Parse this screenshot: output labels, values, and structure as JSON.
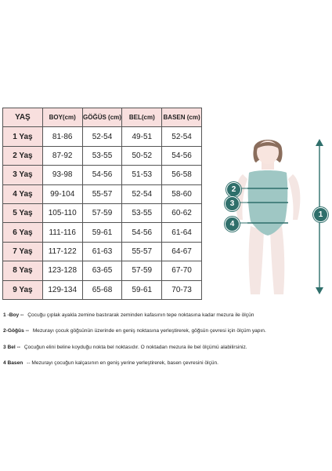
{
  "table": {
    "headers": [
      "YAŞ",
      "BOY(cm)",
      "GÖĞÜS (cm)",
      "BEL(cm)",
      "BASEN (cm)"
    ],
    "rows": [
      [
        "1 Yaş",
        "81-86",
        "52-54",
        "49-51",
        "52-54"
      ],
      [
        "2 Yaş",
        "87-92",
        "53-55",
        "50-52",
        "54-56"
      ],
      [
        "3 Yaş",
        "93-98",
        "54-56",
        "51-53",
        "56-58"
      ],
      [
        "4 Yaş",
        "99-104",
        "55-57",
        "52-54",
        "58-60"
      ],
      [
        "5  Yaş",
        "105-110",
        "57-59",
        "53-55",
        "60-62"
      ],
      [
        "6 Yaş",
        "111-116",
        "59-61",
        "54-56",
        "61-64"
      ],
      [
        "7 Yaş",
        "117-122",
        "61-63",
        "55-57",
        "64-67"
      ],
      [
        "8 Yaş",
        "123-128",
        "63-65",
        "57-59",
        "67-70"
      ],
      [
        "9 Yaş",
        "129-134",
        "65-68",
        "59-61",
        "70-73"
      ]
    ]
  },
  "markers": [
    "1",
    "2",
    "3",
    "4"
  ],
  "colors": {
    "header_bg": "#f8dfde",
    "marker": "#2f6f6b",
    "swimsuit": "#9fc7c4"
  },
  "notes": [
    {
      "label": "1 -Boy --",
      "text": "Çocuğu çıplak ayakla zemine bastırarak  zeminden kafasının tepe noktasına kadar mezura ile ölçün"
    },
    {
      "label": "2-Göğüs --",
      "text": "Mezurayı çocuk göğsünün üzerinde en geniş noktasına yerleştirerek, göğsün çevresi için ölçüm yapın."
    },
    {
      "label": "3 Bel --",
      "text": "Çocuğun elini beline  koyduğu nokta  bel noktasıdır. O noktadan mezura ile bel ölçümü alabilirsiniz."
    },
    {
      "label": "4 Basen",
      "text": "-- Mezurayı çocuğun kalçasının en geniş yerine yerleştirerek, basen çevresini ölçün."
    }
  ]
}
